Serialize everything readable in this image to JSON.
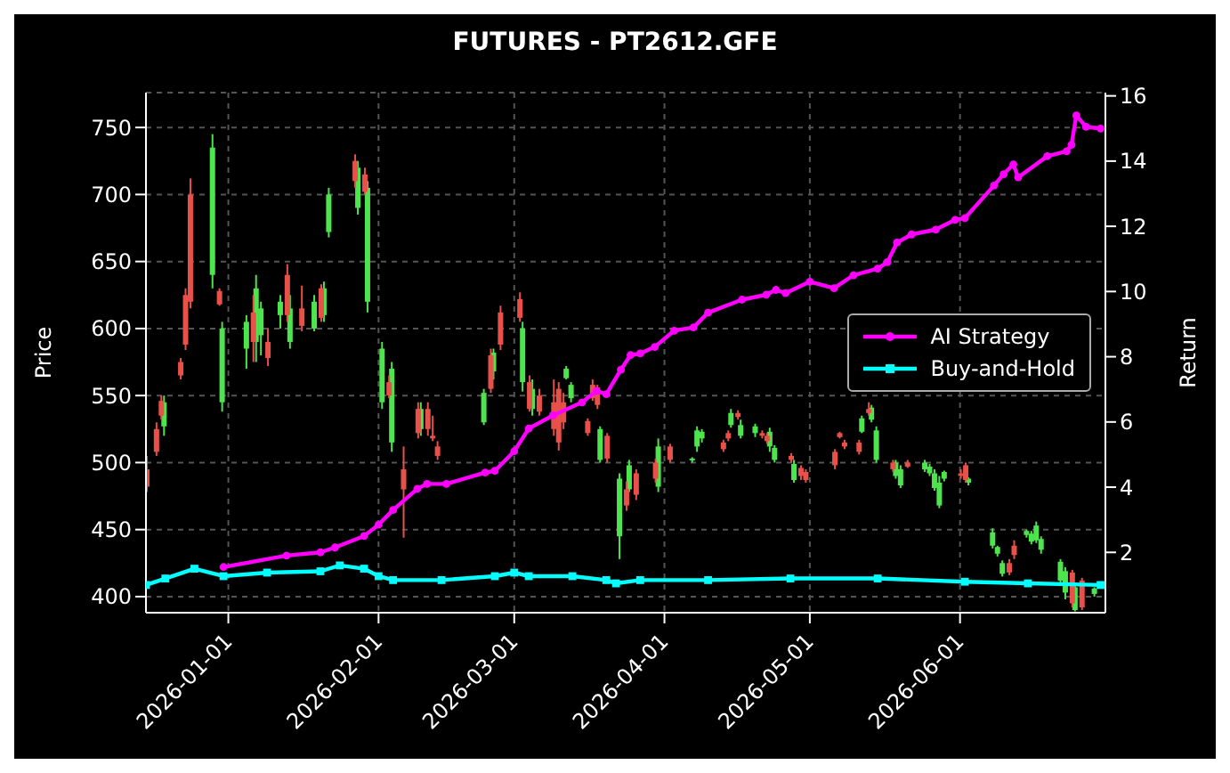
{
  "chart_data": {
    "type": "candlestick",
    "title": "FUTURES - PT2612.GFE",
    "ylabel": "Price",
    "y2label": "Return",
    "xlim": [
      "2025-12-15",
      "2026-07-01"
    ],
    "xticks": [
      "2026-01-01",
      "2026-02-01",
      "2026-03-01",
      "2026-04-01",
      "2026-05-01",
      "2026-06-01"
    ],
    "ylim": [
      388,
      776
    ],
    "yticks": [
      400,
      450,
      500,
      550,
      600,
      650,
      700,
      750
    ],
    "y2lim": [
      0.15,
      16.1
    ],
    "y2ticks": [
      2,
      4,
      6,
      8,
      10,
      12,
      14,
      16
    ],
    "grid": true,
    "legend": "right",
    "series": [
      {
        "name": "AI Strategy",
        "type": "line",
        "axis": "y2",
        "color": "#ff00ff",
        "marker": "circle",
        "x": [
          "2025-12-31",
          "2026-01-13",
          "2026-01-20",
          "2026-01-23",
          "2026-01-29",
          "2026-02-01",
          "2026-02-04",
          "2026-02-09",
          "2026-02-11",
          "2026-02-15",
          "2026-02-23",
          "2026-02-25",
          "2026-03-01",
          "2026-03-04",
          "2026-03-09",
          "2026-03-15",
          "2026-03-18",
          "2026-03-20",
          "2026-03-23",
          "2026-03-25",
          "2026-03-27",
          "2026-03-30",
          "2026-04-03",
          "2026-04-07",
          "2026-04-10",
          "2026-04-17",
          "2026-04-22",
          "2026-04-24",
          "2026-04-26",
          "2026-05-01",
          "2026-05-06",
          "2026-05-10",
          "2026-05-15",
          "2026-05-17",
          "2026-05-19",
          "2026-05-22",
          "2026-05-27",
          "2026-05-31",
          "2026-06-02",
          "2026-06-08",
          "2026-06-10",
          "2026-06-12",
          "2026-06-13",
          "2026-06-19",
          "2026-06-23",
          "2026-06-24",
          "2026-06-25",
          "2026-06-27",
          "2026-06-30"
        ],
        "values": [
          1.55,
          1.9,
          2.0,
          2.15,
          2.5,
          2.85,
          3.3,
          3.95,
          4.1,
          4.1,
          4.45,
          4.5,
          5.1,
          5.8,
          6.2,
          6.6,
          6.95,
          6.85,
          7.6,
          8.05,
          8.1,
          8.3,
          8.8,
          8.9,
          9.35,
          9.75,
          9.9,
          10.05,
          9.95,
          10.3,
          10.1,
          10.5,
          10.7,
          10.9,
          11.5,
          11.75,
          11.9,
          12.2,
          12.25,
          13.25,
          13.6,
          13.9,
          13.5,
          14.15,
          14.3,
          14.5,
          15.4,
          15.05,
          15.0
        ]
      },
      {
        "name": "Buy-and-Hold",
        "type": "line",
        "axis": "y2",
        "color": "#00ffff",
        "marker": "square",
        "x": [
          "2025-12-15",
          "2025-12-19",
          "2025-12-25",
          "2025-12-31",
          "2026-01-09",
          "2026-01-20",
          "2026-01-24",
          "2026-01-29",
          "2026-02-01",
          "2026-02-04",
          "2026-02-14",
          "2026-02-25",
          "2026-03-01",
          "2026-03-04",
          "2026-03-13",
          "2026-03-20",
          "2026-03-22",
          "2026-03-27",
          "2026-04-10",
          "2026-04-27",
          "2026-05-15",
          "2026-06-02",
          "2026-06-15",
          "2026-06-30"
        ],
        "values": [
          1.0,
          1.2,
          1.5,
          1.27,
          1.38,
          1.42,
          1.6,
          1.5,
          1.27,
          1.15,
          1.15,
          1.27,
          1.38,
          1.27,
          1.27,
          1.15,
          1.05,
          1.15,
          1.15,
          1.2,
          1.2,
          1.1,
          1.05,
          1.0
        ]
      },
      {
        "color": "#4ee44e",
        "x": [
          "2025-12-19",
          "2025-12-29",
          "2025-12-31",
          "2026-01-05",
          "2026-01-07",
          "2026-01-08",
          "2026-01-12",
          "2026-01-14",
          "2026-01-19",
          "2026-01-21",
          "2026-01-22",
          "2026-01-28",
          "2026-01-30",
          "2026-02-02",
          "2026-02-04",
          "2026-02-10",
          "2026-02-23",
          "2026-02-25",
          "2026-03-03",
          "2026-03-05",
          "2026-03-12",
          "2026-03-13",
          "2026-03-19",
          "2026-03-23",
          "2026-03-25",
          "2026-03-31",
          "2026-04-07",
          "2026-04-08",
          "2026-04-09",
          "2026-04-15",
          "2026-04-17",
          "2026-04-20",
          "2026-04-23",
          "2026-04-24",
          "2026-04-28",
          "2026-05-12",
          "2026-05-14",
          "2026-05-15",
          "2026-05-19",
          "2026-05-20",
          "2026-05-25",
          "2026-05-26",
          "2026-05-27",
          "2026-05-28",
          "2026-05-29",
          "2026-06-03",
          "2026-06-08",
          "2026-06-09",
          "2026-06-10",
          "2026-06-15",
          "2026-06-16",
          "2026-06-17",
          "2026-06-18",
          "2026-06-22",
          "2026-06-23",
          "2026-06-25",
          "2026-06-29"
        ],
        "ohlc": [
          [
            527,
            550,
            520,
            545
          ],
          [
            640,
            745,
            630,
            735
          ],
          [
            545,
            605,
            538,
            600
          ],
          [
            585,
            610,
            570,
            605
          ],
          [
            590,
            640,
            575,
            630
          ],
          [
            595,
            620,
            580,
            615
          ],
          [
            610,
            625,
            600,
            620
          ],
          [
            590,
            625,
            585,
            615
          ],
          [
            600,
            625,
            598,
            620
          ],
          [
            610,
            635,
            605,
            630
          ],
          [
            672,
            705,
            668,
            700
          ],
          [
            690,
            725,
            685,
            720
          ],
          [
            620,
            710,
            612,
            705
          ],
          [
            545,
            590,
            540,
            585
          ],
          [
            515,
            575,
            508,
            570
          ],
          [
            525,
            545,
            520,
            540
          ],
          [
            530,
            555,
            528,
            552
          ],
          [
            568,
            585,
            562,
            582
          ],
          [
            560,
            605,
            553,
            600
          ],
          [
            540,
            562,
            535,
            555
          ],
          [
            563,
            572,
            562,
            570
          ],
          [
            548,
            560,
            545,
            558
          ],
          [
            502,
            527,
            500,
            525
          ],
          [
            445,
            492,
            428,
            488
          ],
          [
            480,
            502,
            478,
            498
          ],
          [
            482,
            518,
            478,
            512
          ],
          [
            502,
            504,
            500,
            503
          ],
          [
            512,
            527,
            508,
            524
          ],
          [
            518,
            525,
            515,
            523
          ],
          [
            528,
            540,
            526,
            537
          ],
          [
            520,
            532,
            518,
            528
          ],
          [
            522,
            529,
            519,
            527
          ],
          [
            512,
            526,
            508,
            523
          ],
          [
            502,
            513,
            500,
            511
          ],
          [
            487,
            502,
            485,
            499
          ],
          [
            523,
            535,
            522,
            533
          ],
          [
            532,
            543,
            530,
            541
          ],
          [
            502,
            527,
            500,
            524
          ],
          [
            490,
            502,
            488,
            500
          ],
          [
            483,
            498,
            481,
            495
          ],
          [
            495,
            502,
            493,
            500
          ],
          [
            492,
            499,
            490,
            497
          ],
          [
            481,
            495,
            479,
            492
          ],
          [
            468,
            490,
            466,
            485
          ],
          [
            488,
            494,
            486,
            493
          ],
          [
            485,
            489,
            483,
            488
          ],
          [
            438,
            451,
            436,
            448
          ],
          [
            432,
            438,
            430,
            437
          ],
          [
            417,
            427,
            415,
            425
          ],
          [
            446,
            450,
            444,
            449
          ],
          [
            441,
            449,
            439,
            447
          ],
          [
            442,
            456,
            440,
            453
          ],
          [
            435,
            445,
            432,
            443
          ],
          [
            412,
            428,
            408,
            426
          ],
          [
            403,
            422,
            398,
            419
          ],
          [
            390,
            410,
            389,
            407
          ],
          [
            402,
            407,
            400,
            406
          ]
        ]
      },
      {
        "color": "#e8504a",
        "x": [
          "2025-12-15",
          "2025-12-17",
          "2025-12-18",
          "2025-12-22",
          "2025-12-23",
          "2025-12-24",
          "2025-12-30",
          "2026-01-06",
          "2026-01-09",
          "2026-01-13",
          "2026-01-16",
          "2026-01-20",
          "2026-01-27",
          "2026-01-29",
          "2026-02-03",
          "2026-02-06",
          "2026-02-09",
          "2026-02-11",
          "2026-02-12",
          "2026-02-13",
          "2026-02-24",
          "2026-02-26",
          "2026-03-02",
          "2026-03-04",
          "2026-03-06",
          "2026-03-09",
          "2026-03-10",
          "2026-03-11",
          "2026-03-16",
          "2026-03-17",
          "2026-03-18",
          "2026-03-20",
          "2026-03-24",
          "2026-03-26",
          "2026-03-30",
          "2026-04-02",
          "2026-04-13",
          "2026-04-14",
          "2026-04-16",
          "2026-04-21",
          "2026-04-22",
          "2026-04-27",
          "2026-04-29",
          "2026-04-30",
          "2026-05-06",
          "2026-05-07",
          "2026-05-08",
          "2026-05-11",
          "2026-05-13",
          "2026-05-18",
          "2026-05-21",
          "2026-06-01",
          "2026-06-02",
          "2026-06-11",
          "2026-06-12",
          "2026-06-24",
          "2026-06-26"
        ],
        "ohlc": [
          [
            495,
            505,
            478,
            482
          ],
          [
            525,
            530,
            505,
            508
          ],
          [
            546,
            550,
            532,
            535
          ],
          [
            575,
            578,
            562,
            565
          ],
          [
            625,
            630,
            584,
            588
          ],
          [
            700,
            712,
            615,
            620
          ],
          [
            628,
            630,
            617,
            618
          ],
          [
            612,
            625,
            575,
            590
          ],
          [
            590,
            600,
            572,
            578
          ],
          [
            640,
            648,
            605,
            610
          ],
          [
            615,
            632,
            598,
            602
          ],
          [
            630,
            633,
            605,
            608
          ],
          [
            725,
            730,
            705,
            710
          ],
          [
            715,
            720,
            700,
            702
          ],
          [
            560,
            565,
            548,
            550
          ],
          [
            495,
            512,
            444,
            480
          ],
          [
            540,
            545,
            518,
            522
          ],
          [
            540,
            545,
            520,
            525
          ],
          [
            520,
            535,
            516,
            518
          ],
          [
            512,
            516,
            502,
            505
          ],
          [
            580,
            585,
            552,
            555
          ],
          [
            612,
            617,
            584,
            588
          ],
          [
            622,
            627,
            605,
            608
          ],
          [
            560,
            565,
            538,
            540
          ],
          [
            550,
            555,
            535,
            538
          ],
          [
            545,
            562,
            520,
            525
          ],
          [
            555,
            560,
            509,
            515
          ],
          [
            545,
            552,
            525,
            530
          ],
          [
            531,
            533,
            520,
            522
          ],
          [
            558,
            562,
            546,
            548
          ],
          [
            556,
            558,
            540,
            543
          ],
          [
            520,
            522,
            500,
            503
          ],
          [
            480,
            486,
            464,
            468
          ],
          [
            492,
            495,
            472,
            476
          ],
          [
            500,
            503,
            485,
            488
          ],
          [
            512,
            514,
            500,
            502
          ],
          [
            515,
            517,
            508,
            510
          ],
          [
            522,
            524,
            516,
            518
          ],
          [
            537,
            539,
            532,
            534
          ],
          [
            522,
            524,
            518,
            520
          ],
          [
            520,
            522,
            514,
            516
          ],
          [
            505,
            507,
            500,
            502
          ],
          [
            496,
            498,
            487,
            490
          ],
          [
            493,
            495,
            485,
            487
          ],
          [
            508,
            510,
            495,
            498
          ],
          [
            522,
            523,
            518,
            519
          ],
          [
            515,
            517,
            510,
            512
          ],
          [
            515,
            517,
            506,
            508
          ],
          [
            540,
            545,
            535,
            537
          ],
          [
            500,
            502,
            493,
            495
          ],
          [
            500,
            502,
            496,
            497
          ],
          [
            492,
            495,
            488,
            490
          ],
          [
            498,
            500,
            485,
            487
          ],
          [
            425,
            428,
            416,
            418
          ],
          [
            438,
            442,
            428,
            431
          ],
          [
            418,
            420,
            392,
            395
          ],
          [
            412,
            414,
            390,
            392
          ]
        ]
      }
    ]
  }
}
